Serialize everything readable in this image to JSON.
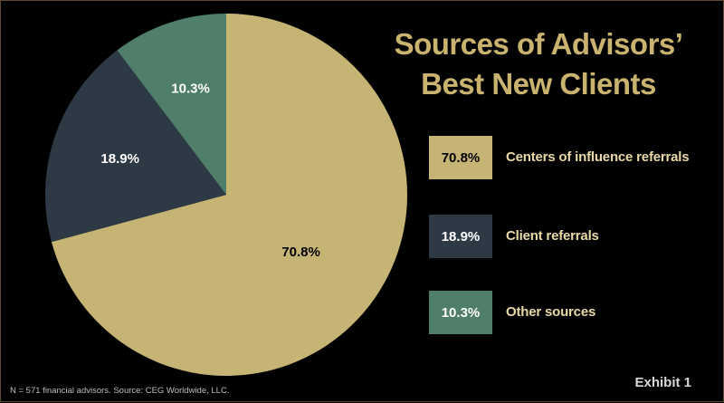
{
  "title_lines": [
    "Sources of Advisors’",
    "Best New Clients"
  ],
  "colors": {
    "background": "#000000",
    "title": "#C9B36E",
    "legend_text": "#E8D9A6"
  },
  "chart_data": {
    "type": "pie",
    "title": "Sources of Advisors’ Best New Clients",
    "slices": [
      {
        "label": "Centers of influence referrals",
        "value": 70.8,
        "display": "70.8%",
        "color": "#C6B475",
        "label_color": "#000000"
      },
      {
        "label": "Client referrals",
        "value": 18.9,
        "display": "18.9%",
        "color": "#2D3A46",
        "label_color": "#FFFFFF"
      },
      {
        "label": "Other sources",
        "value": 10.3,
        "display": "10.3%",
        "color": "#4F7E6A",
        "label_color": "#FFFFFF"
      }
    ],
    "legend_position": "right"
  },
  "footnote": "N = 571 financial advisors. Source: CEG Worldwide, LLC.",
  "exhibit_label": "Exhibit 1"
}
